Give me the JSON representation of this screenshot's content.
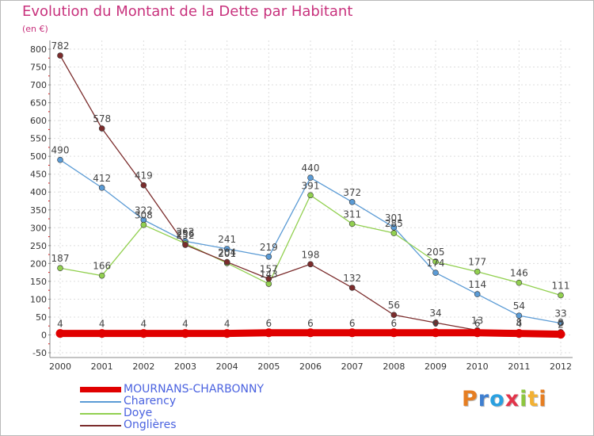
{
  "chart_data": {
    "type": "line",
    "title": "Evolution du Montant de la Dette par Habitant",
    "unit": "(en €)",
    "x": [
      "2000",
      "2001",
      "2002",
      "2003",
      "2004",
      "2005",
      "2006",
      "2007",
      "2008",
      "2009",
      "2010",
      "2011",
      "2012"
    ],
    "yticks": [
      -50,
      0,
      50,
      100,
      150,
      200,
      250,
      300,
      350,
      400,
      450,
      500,
      550,
      600,
      650,
      700,
      750,
      800
    ],
    "ytick_labels": [
      "-50",
      "0",
      "50",
      "100",
      "150",
      "200",
      "250",
      "300",
      "350",
      "400",
      "450",
      "500",
      "550",
      "600",
      "650",
      "700",
      "750",
      "800"
    ],
    "ylim": [
      -50,
      800
    ],
    "grid": true,
    "legend_position": "bottom-left",
    "series": [
      {
        "name": "MOURNANS-CHARBONNY",
        "color": "#e00000",
        "values": [
          4,
          4,
          4,
          4,
          4,
          6,
          6,
          6,
          6,
          6,
          6,
          4,
          2
        ],
        "labels": [
          "4",
          "4",
          "4",
          "4",
          "4",
          "6",
          "6",
          "6",
          "6",
          "6",
          "6",
          "4",
          "2"
        ]
      },
      {
        "name": "Charency",
        "color": "#5b9bd5",
        "values": [
          490,
          412,
          322,
          262,
          241,
          219,
          440,
          372,
          301,
          174,
          114,
          54,
          33
        ],
        "labels": [
          "490",
          "412",
          "322",
          "262",
          "241",
          "219",
          "440",
          "372",
          "301",
          "174",
          "114",
          "54",
          "33"
        ]
      },
      {
        "name": "Doye",
        "color": "#92d050",
        "values": [
          187,
          166,
          308,
          256,
          201,
          143,
          391,
          311,
          285,
          205,
          177,
          146,
          111
        ],
        "labels": [
          "187",
          "166",
          "308",
          "256",
          "201",
          "143",
          "391",
          "311",
          "285",
          "205",
          "177",
          "146",
          "111"
        ]
      },
      {
        "name": "Onglières",
        "color": "#7b2c2c",
        "values": [
          782,
          578,
          419,
          252,
          204,
          157,
          198,
          132,
          56,
          34,
          13,
          8,
          8
        ],
        "labels": [
          "782",
          "578",
          "419",
          "252",
          "204",
          "157",
          "198",
          "132",
          "56",
          "34",
          "13",
          "8",
          "8"
        ]
      }
    ]
  },
  "logo": {
    "text": "Proxiti",
    "letter_colors": [
      "#e67e22",
      "#3f7fd0",
      "#2aa0e0",
      "#e2344a",
      "#8dc63f",
      "#f2b134",
      "#e67e22"
    ]
  }
}
